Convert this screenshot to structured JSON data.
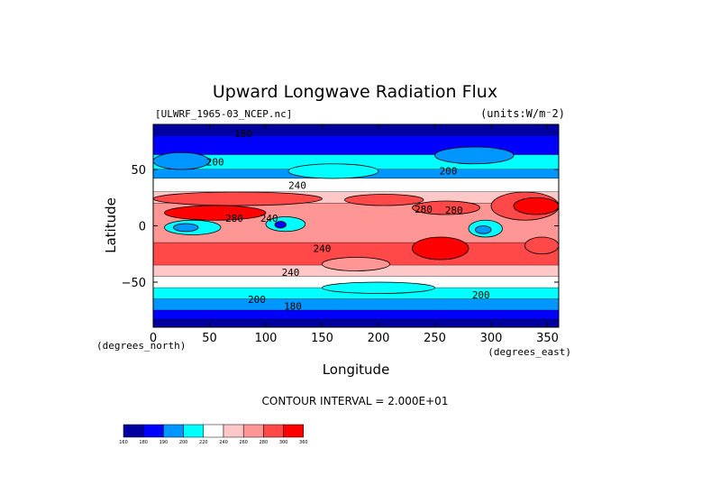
{
  "chart_data": {
    "type": "heatmap",
    "title": "Upward Longwave Radiation Flux",
    "file_label": "[ULWRF_1965-03_NCEP.nc]",
    "units_label": "(units:W/m⁻2)",
    "xlabel": "Longitude",
    "ylabel": "Latitude",
    "x_units_label": "(degrees_east)",
    "y_units_label": "(degrees_north)",
    "xlim": [
      0,
      360
    ],
    "ylim": [
      -90,
      90
    ],
    "x_ticks": [
      0,
      50,
      100,
      150,
      200,
      250,
      300,
      350
    ],
    "y_ticks": [
      -50,
      0,
      50
    ],
    "y_tick_labels": [
      "−50",
      "0",
      "50"
    ],
    "contour_interval_label": "CONTOUR INTERVAL = 2.000E+01",
    "contour_labels": [
      {
        "text": "200",
        "lon": 55,
        "lat": 57
      },
      {
        "text": "200",
        "lon": 262,
        "lat": 49
      },
      {
        "text": "240",
        "lon": 128,
        "lat": 36
      },
      {
        "text": "280",
        "lon": 72,
        "lat": 7
      },
      {
        "text": "240",
        "lon": 103,
        "lat": 7
      },
      {
        "text": "280",
        "lon": 240,
        "lat": 15
      },
      {
        "text": "280",
        "lon": 267,
        "lat": 14
      },
      {
        "text": "240",
        "lon": 150,
        "lat": -20
      },
      {
        "text": "240",
        "lon": 122,
        "lat": -41
      },
      {
        "text": "200",
        "lon": 92,
        "lat": -65
      },
      {
        "text": "180",
        "lon": 124,
        "lat": -71
      },
      {
        "text": "200",
        "lon": 291,
        "lat": -61
      },
      {
        "text": "180",
        "lon": 80,
        "lat": 82
      }
    ],
    "colorbar": {
      "levels": [
        160,
        180,
        190,
        200,
        220,
        240,
        260,
        280,
        300,
        360
      ],
      "colors": [
        "#0000a0",
        "#0000ff",
        "#0096ff",
        "#00ffff",
        "#ffffff",
        "#ffc8c8",
        "#ff9696",
        "#ff4848",
        "#ff0000"
      ]
    },
    "bands": [
      {
        "lat_top": 90,
        "lat_bottom": 80,
        "value_class": 0
      },
      {
        "lat_top": 80,
        "lat_bottom": 63,
        "value_class": 1
      },
      {
        "lat_top": 63,
        "lat_bottom": 50,
        "value_class": 3
      },
      {
        "lat_top": 50,
        "lat_bottom": 42,
        "value_class": 2
      },
      {
        "lat_top": 42,
        "lat_bottom": 30,
        "value_class": 4
      },
      {
        "lat_top": 30,
        "lat_bottom": 20,
        "value_class": 5
      },
      {
        "lat_top": 20,
        "lat_bottom": -15,
        "value_class": 6
      },
      {
        "lat_top": -15,
        "lat_bottom": -35,
        "value_class": 7
      },
      {
        "lat_top": -35,
        "lat_bottom": -45,
        "value_class": 5
      },
      {
        "lat_top": -45,
        "lat_bottom": -55,
        "value_class": 4
      },
      {
        "lat_top": -55,
        "lat_bottom": -65,
        "value_class": 3
      },
      {
        "lat_top": -65,
        "lat_bottom": -75,
        "value_class": 2
      },
      {
        "lat_top": -75,
        "lat_bottom": -83,
        "value_class": 1
      },
      {
        "lat_top": -83,
        "lat_bottom": -90,
        "value_class": 0
      }
    ],
    "patches": [
      {
        "lon_min": 0,
        "lon_max": 150,
        "lat_min": 18,
        "lat_max": 30,
        "value_class": 7
      },
      {
        "lon_min": 10,
        "lon_max": 100,
        "lat_min": 5,
        "lat_max": 18,
        "value_class": 8
      },
      {
        "lon_min": 170,
        "lon_max": 240,
        "lat_min": 18,
        "lat_max": 28,
        "value_class": 7
      },
      {
        "lon_min": 230,
        "lon_max": 290,
        "lat_min": 10,
        "lat_max": 22,
        "value_class": 7
      },
      {
        "lon_min": 300,
        "lon_max": 360,
        "lat_min": 5,
        "lat_max": 30,
        "value_class": 7
      },
      {
        "lon_min": 320,
        "lon_max": 360,
        "lat_min": 10,
        "lat_max": 25,
        "value_class": 8
      },
      {
        "lon_min": 10,
        "lon_max": 60,
        "lat_min": -8,
        "lat_max": 5,
        "value_class": 3
      },
      {
        "lon_min": 18,
        "lon_max": 40,
        "lat_min": -5,
        "lat_max": 2,
        "value_class": 2
      },
      {
        "lon_min": 100,
        "lon_max": 135,
        "lat_min": -5,
        "lat_max": 8,
        "value_class": 3
      },
      {
        "lon_min": 108,
        "lon_max": 118,
        "lat_min": -2,
        "lat_max": 4,
        "value_class": 1
      },
      {
        "lon_min": 280,
        "lon_max": 310,
        "lat_min": -10,
        "lat_max": 5,
        "value_class": 3
      },
      {
        "lon_min": 286,
        "lon_max": 300,
        "lat_min": -7,
        "lat_max": 0,
        "value_class": 2
      },
      {
        "lon_min": 230,
        "lon_max": 280,
        "lat_min": -30,
        "lat_max": -10,
        "value_class": 8
      },
      {
        "lon_min": 330,
        "lon_max": 360,
        "lat_min": -25,
        "lat_max": -10,
        "value_class": 7
      },
      {
        "lon_min": 150,
        "lon_max": 210,
        "lat_min": -40,
        "lat_max": -28,
        "value_class": 6
      },
      {
        "lon_min": 0,
        "lon_max": 50,
        "lat_min": 50,
        "lat_max": 65,
        "value_class": 2
      },
      {
        "lon_min": 250,
        "lon_max": 320,
        "lat_min": 55,
        "lat_max": 70,
        "value_class": 2
      },
      {
        "lon_min": 120,
        "lon_max": 200,
        "lat_min": 42,
        "lat_max": 55,
        "value_class": 3
      },
      {
        "lon_min": 150,
        "lon_max": 250,
        "lat_min": -60,
        "lat_max": -50,
        "value_class": 3
      }
    ]
  }
}
